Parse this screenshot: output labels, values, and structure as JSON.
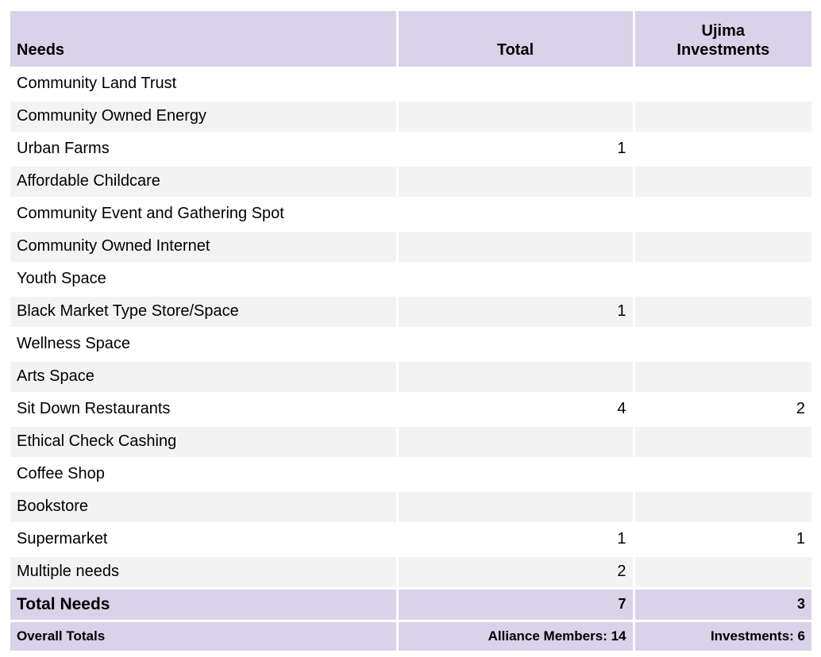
{
  "colors": {
    "header_background": "#d9d2e9",
    "totals_background": "#d9d2e9",
    "alt_row_background": "#f3f3f3",
    "row_background": "#ffffff",
    "text": "#000000",
    "grid_separator": "#ffffff"
  },
  "chart_data": {
    "type": "table",
    "columns": [
      "Needs",
      "Total",
      "Ujima Investments"
    ],
    "header_display": {
      "needs": "Needs",
      "total": "Total",
      "ujima": "Ujima\nInvestments"
    },
    "rows": [
      [
        "Community Land Trust",
        "",
        ""
      ],
      [
        "Community Owned Energy",
        "",
        ""
      ],
      [
        "Urban Farms",
        "1",
        ""
      ],
      [
        "Affordable Childcare",
        "",
        ""
      ],
      [
        "Community Event and Gathering Spot",
        "",
        ""
      ],
      [
        "Community Owned Internet",
        "",
        ""
      ],
      [
        "Youth Space",
        "",
        ""
      ],
      [
        "Black Market Type Store/Space",
        "1",
        ""
      ],
      [
        "Wellness Space",
        "",
        ""
      ],
      [
        "Arts Space",
        "",
        ""
      ],
      [
        "Sit Down Restaurants",
        "4",
        "2"
      ],
      [
        "Ethical Check Cashing",
        "",
        ""
      ],
      [
        "Coffee Shop",
        "",
        ""
      ],
      [
        "Bookstore",
        "",
        ""
      ],
      [
        "Supermarket",
        "1",
        "1"
      ],
      [
        "Multiple needs",
        "2",
        ""
      ]
    ],
    "total_row": [
      "Total Needs",
      "7",
      "3"
    ],
    "overall_row": [
      "Overall Totals",
      "Alliance Members: 14",
      "Investments: 6"
    ],
    "layout_hints": {
      "needs_align": "left",
      "value_align": "right",
      "header_align": [
        "left",
        "center",
        "center"
      ],
      "alternating_rows": true
    }
  }
}
